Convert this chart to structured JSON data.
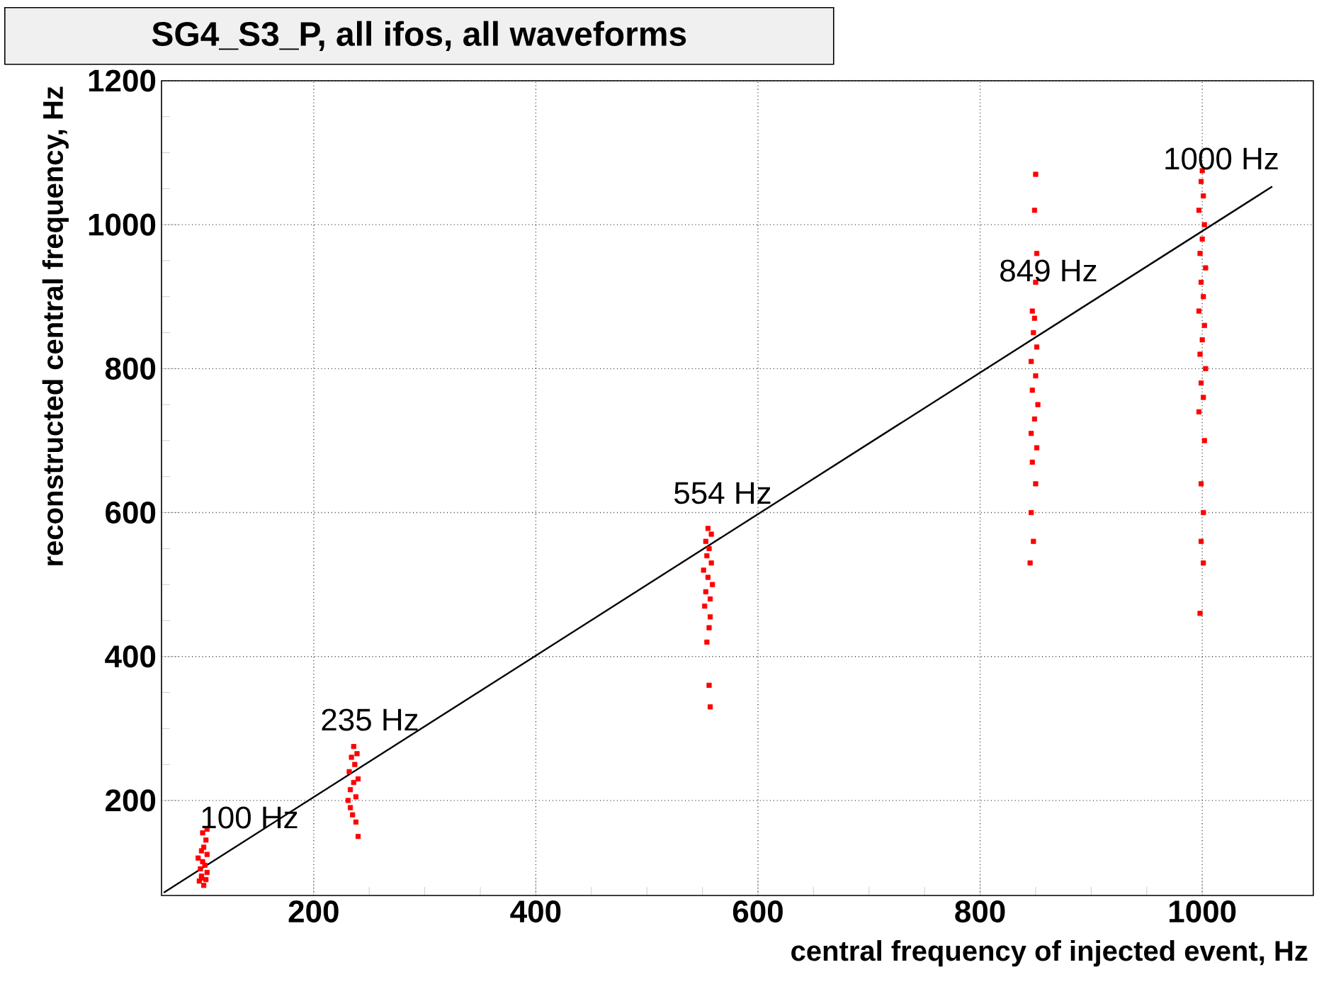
{
  "chart_data": {
    "type": "scatter",
    "title": "SG4_S3_P, all ifos, all waveforms",
    "xlabel": "central frequency of injected event, Hz",
    "ylabel": "reconstructed central frequency, Hz",
    "xlim": [
      63,
      1100
    ],
    "ylim": [
      68,
      1200
    ],
    "xticks": [
      200,
      400,
      600,
      800,
      1000
    ],
    "yticks": [
      200,
      400,
      600,
      800,
      1000,
      1200
    ],
    "grid": true,
    "marker": "square",
    "series": [
      {
        "color": "#ff0000",
        "x": [
          97,
          103,
          99,
          104,
          98,
          102,
          100,
          96,
          104,
          99,
          101,
          103,
          100,
          104,
          99,
          101,
          231,
          238,
          233,
          236,
          240,
          232,
          237,
          234,
          239,
          236,
          235,
          238,
          240,
          233,
          552,
          557,
          553,
          559,
          555,
          551,
          558,
          554,
          556,
          553,
          558,
          555,
          557,
          556,
          554,
          556,
          557,
          845,
          848,
          846,
          850,
          847,
          851,
          846,
          849,
          852,
          847,
          850,
          846,
          851,
          848,
          849,
          847,
          850,
          851,
          849,
          850,
          998,
          999,
          1001,
          999,
          1002,
          997,
          1001,
          999,
          1003,
          998,
          1000,
          1002,
          997,
          1001,
          999,
          1003,
          998,
          1000,
          1002,
          997,
          1001,
          999,
          1000,
          1001
        ],
        "values": [
          88,
          90,
          95,
          100,
          105,
          110,
          115,
          120,
          125,
          130,
          135,
          145,
          155,
          160,
          92,
          82,
          200,
          205,
          215,
          225,
          230,
          240,
          250,
          260,
          265,
          275,
          180,
          170,
          150,
          190,
          470,
          480,
          490,
          500,
          510,
          520,
          530,
          540,
          550,
          560,
          570,
          578,
          455,
          440,
          420,
          360,
          330,
          530,
          560,
          600,
          640,
          670,
          690,
          710,
          730,
          750,
          770,
          790,
          810,
          830,
          850,
          870,
          880,
          920,
          960,
          1020,
          1070,
          460,
          560,
          600,
          640,
          700,
          740,
          760,
          780,
          800,
          820,
          840,
          860,
          880,
          900,
          920,
          940,
          960,
          980,
          1000,
          1020,
          1040,
          1060,
          1075,
          530
        ]
      },
      {
        "type": "line",
        "color": "#000000",
        "marker": "none",
        "x": [
          65,
          1063
        ],
        "values": [
          72,
          1053
        ]
      }
    ],
    "annotations": [
      "100 Hz",
      "235 Hz",
      "554 Hz",
      "849 Hz",
      "1000 Hz"
    ]
  }
}
